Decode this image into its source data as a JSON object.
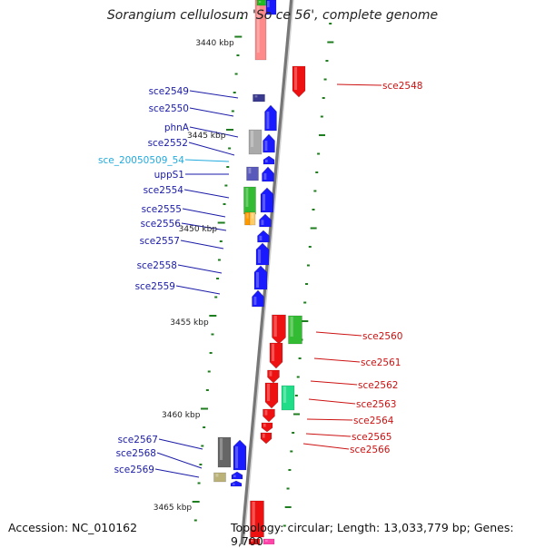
{
  "title": "Sorangium cellulosum 'So ce 56', complete genome",
  "footer": {
    "accession": "Accession: NC_010162",
    "topology": "Topology: circular; Length: 13,033,779 bp; Genes: 9,700"
  },
  "colors": {
    "plus_strand": "#1a1aff",
    "minus_strand": "#ee1111",
    "left_label": "#1a1aa8",
    "right_label": "#cc1111",
    "ncrna_label": "#22aadd",
    "tick": "#1e7d1e",
    "backbone": "#888888"
  },
  "scale": {
    "tick_labels": [
      "3440 kbp",
      "3445 kbp",
      "3450 kbp",
      "3455 kbp",
      "3460 kbp",
      "3465 kbp"
    ]
  },
  "left_genes": [
    {
      "label": "sce2549",
      "kind": "cds"
    },
    {
      "label": "sce2550",
      "kind": "cds"
    },
    {
      "label": "phnA",
      "kind": "cds"
    },
    {
      "label": "sce2552",
      "kind": "cds"
    },
    {
      "label": "sce_20050509_54",
      "kind": "ncrna"
    },
    {
      "label": "uppS1",
      "kind": "cds"
    },
    {
      "label": "sce2554",
      "kind": "cds"
    },
    {
      "label": "sce2555",
      "kind": "cds"
    },
    {
      "label": "sce2556",
      "kind": "cds"
    },
    {
      "label": "sce2557",
      "kind": "cds"
    },
    {
      "label": "sce2558",
      "kind": "cds"
    },
    {
      "label": "sce2559",
      "kind": "cds"
    },
    {
      "label": "sce2567",
      "kind": "cds"
    },
    {
      "label": "sce2568",
      "kind": "cds"
    },
    {
      "label": "sce2569",
      "kind": "cds"
    }
  ],
  "right_genes": [
    {
      "label": "sce2548"
    },
    {
      "label": "sce2560"
    },
    {
      "label": "sce2561"
    },
    {
      "label": "sce2562"
    },
    {
      "label": "sce2563"
    },
    {
      "label": "sce2564"
    },
    {
      "label": "sce2565"
    },
    {
      "label": "sce2566"
    }
  ]
}
